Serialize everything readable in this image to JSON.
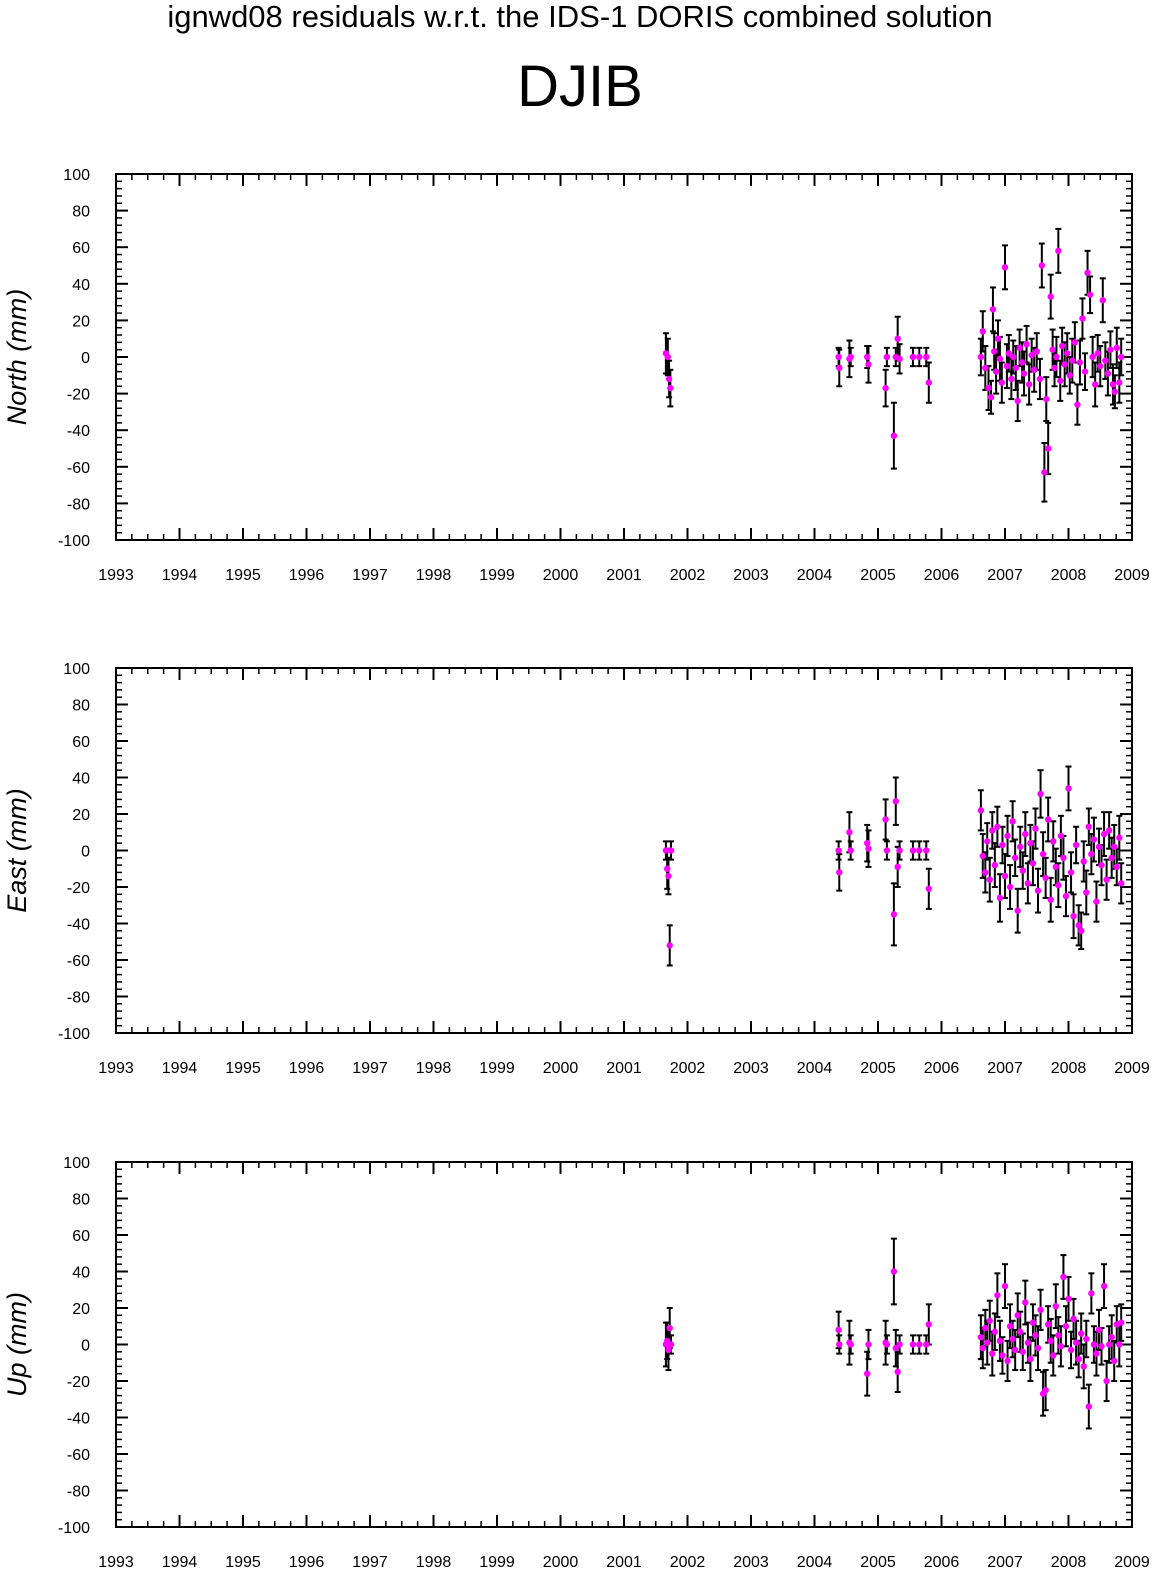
{
  "title": "ignwd08 residuals w.r.t. the IDS-1 DORIS combined solution",
  "subtitle": "DJIB",
  "colors": {
    "marker": "#ff00ff",
    "errorbar": "#000000",
    "axis": "#000000"
  },
  "chart_data": [
    {
      "type": "scatter",
      "ylabel": "North (mm)",
      "xlim": [
        1993,
        2009
      ],
      "ylim": [
        -100,
        100
      ],
      "xticks": [
        "1993",
        "1994",
        "1995",
        "1996",
        "1997",
        "1998",
        "1999",
        "2000",
        "2001",
        "2002",
        "2003",
        "2004",
        "2005",
        "2006",
        "2007",
        "2008",
        "2009"
      ],
      "yticks": [
        "-100",
        "-80",
        "-60",
        "-40",
        "-20",
        "0",
        "20",
        "40",
        "60",
        "80",
        "100"
      ],
      "points": [
        [
          2001.66,
          2,
          11
        ],
        [
          2001.69,
          0,
          10
        ],
        [
          2001.71,
          -12,
          10
        ],
        [
          2001.73,
          -17,
          10
        ],
        [
          2004.38,
          0,
          5
        ],
        [
          2004.39,
          -6,
          10
        ],
        [
          2004.55,
          -1,
          10
        ],
        [
          2004.57,
          0,
          5
        ],
        [
          2004.83,
          0,
          6
        ],
        [
          2004.85,
          -4,
          10
        ],
        [
          2005.12,
          -17,
          10
        ],
        [
          2005.14,
          0,
          5
        ],
        [
          2005.25,
          -43,
          18
        ],
        [
          2005.28,
          0,
          5
        ],
        [
          2005.31,
          10,
          12
        ],
        [
          2005.34,
          -1,
          8
        ],
        [
          2005.55,
          0,
          5
        ],
        [
          2005.65,
          0,
          5
        ],
        [
          2005.76,
          0,
          5
        ],
        [
          2005.8,
          -14,
          11
        ],
        [
          2006.62,
          0,
          10
        ],
        [
          2006.65,
          14,
          11
        ],
        [
          2006.69,
          -6,
          12
        ],
        [
          2006.74,
          -17,
          12
        ],
        [
          2006.78,
          -22,
          9
        ],
        [
          2006.81,
          26,
          12
        ],
        [
          2006.83,
          3,
          10
        ],
        [
          2006.86,
          -8,
          12
        ],
        [
          2006.89,
          10,
          10
        ],
        [
          2006.92,
          -1,
          12
        ],
        [
          2006.95,
          -14,
          11
        ],
        [
          2007.0,
          49,
          12
        ],
        [
          2007.03,
          -5,
          12
        ],
        [
          2007.06,
          2,
          10
        ],
        [
          2007.1,
          -12,
          11
        ],
        [
          2007.13,
          0,
          9
        ],
        [
          2007.17,
          -6,
          12
        ],
        [
          2007.2,
          -24,
          11
        ],
        [
          2007.23,
          5,
          10
        ],
        [
          2007.27,
          -3,
          11
        ],
        [
          2007.3,
          -9,
          12
        ],
        [
          2007.34,
          7,
          10
        ],
        [
          2007.38,
          -15,
          11
        ],
        [
          2007.42,
          1,
          9
        ],
        [
          2007.46,
          -7,
          12
        ],
        [
          2007.5,
          3,
          10
        ],
        [
          2007.55,
          -12,
          11
        ],
        [
          2007.58,
          50,
          12
        ],
        [
          2007.62,
          -63,
          16
        ],
        [
          2007.65,
          -23,
          12
        ],
        [
          2007.68,
          -50,
          14
        ],
        [
          2007.72,
          33,
          12
        ],
        [
          2007.75,
          4,
          11
        ],
        [
          2007.78,
          -6,
          10
        ],
        [
          2007.81,
          0,
          11
        ],
        [
          2007.84,
          58,
          12
        ],
        [
          2007.87,
          -13,
          11
        ],
        [
          2007.9,
          6,
          10
        ],
        [
          2007.94,
          -4,
          12
        ],
        [
          2007.98,
          2,
          11
        ],
        [
          2008.02,
          -10,
          10
        ],
        [
          2008.06,
          -2,
          12
        ],
        [
          2008.1,
          8,
          11
        ],
        [
          2008.14,
          -26,
          11
        ],
        [
          2008.18,
          -3,
          12
        ],
        [
          2008.22,
          21,
          11
        ],
        [
          2008.26,
          -8,
          10
        ],
        [
          2008.3,
          46,
          12
        ],
        [
          2008.34,
          34,
          10
        ],
        [
          2008.38,
          0,
          11
        ],
        [
          2008.42,
          -15,
          12
        ],
        [
          2008.46,
          2,
          10
        ],
        [
          2008.5,
          -5,
          11
        ],
        [
          2008.54,
          31,
          12
        ],
        [
          2008.58,
          -2,
          10
        ],
        [
          2008.62,
          -9,
          12
        ],
        [
          2008.66,
          4,
          10
        ],
        [
          2008.7,
          -15,
          11
        ],
        [
          2008.73,
          -19,
          9
        ],
        [
          2008.76,
          5,
          11
        ],
        [
          2008.8,
          -14,
          11
        ],
        [
          2008.83,
          0,
          10
        ]
      ]
    },
    {
      "type": "scatter",
      "ylabel": "East (mm)",
      "xlim": [
        1993,
        2009
      ],
      "ylim": [
        -100,
        100
      ],
      "xticks": [
        "1993",
        "1994",
        "1995",
        "1996",
        "1997",
        "1998",
        "1999",
        "2000",
        "2001",
        "2002",
        "2003",
        "2004",
        "2005",
        "2006",
        "2007",
        "2008",
        "2009"
      ],
      "yticks": [
        "-100",
        "-80",
        "-60",
        "-40",
        "-20",
        "0",
        "20",
        "40",
        "60",
        "80",
        "100"
      ],
      "points": [
        [
          2001.66,
          0,
          5
        ],
        [
          2001.68,
          -10,
          11
        ],
        [
          2001.7,
          -14,
          10
        ],
        [
          2001.72,
          -52,
          11
        ],
        [
          2001.74,
          0,
          5
        ],
        [
          2004.38,
          0,
          5
        ],
        [
          2004.39,
          -12,
          10
        ],
        [
          2004.55,
          10,
          11
        ],
        [
          2004.57,
          0,
          5
        ],
        [
          2004.83,
          4,
          10
        ],
        [
          2004.85,
          1,
          10
        ],
        [
          2005.12,
          17,
          11
        ],
        [
          2005.14,
          0,
          5
        ],
        [
          2005.25,
          -35,
          17
        ],
        [
          2005.28,
          27,
          13
        ],
        [
          2005.31,
          -9,
          11
        ],
        [
          2005.34,
          0,
          5
        ],
        [
          2005.55,
          0,
          5
        ],
        [
          2005.65,
          0,
          5
        ],
        [
          2005.76,
          0,
          5
        ],
        [
          2005.8,
          -21,
          11
        ],
        [
          2006.62,
          22,
          11
        ],
        [
          2006.65,
          -3,
          12
        ],
        [
          2006.69,
          -12,
          11
        ],
        [
          2006.72,
          5,
          10
        ],
        [
          2006.76,
          -16,
          12
        ],
        [
          2006.8,
          11,
          10
        ],
        [
          2006.84,
          -8,
          12
        ],
        [
          2006.88,
          13,
          11
        ],
        [
          2006.92,
          -26,
          13
        ],
        [
          2006.96,
          3,
          10
        ],
        [
          2007.0,
          -14,
          12
        ],
        [
          2007.04,
          8,
          11
        ],
        [
          2007.08,
          -20,
          12
        ],
        [
          2007.12,
          16,
          11
        ],
        [
          2007.16,
          -4,
          10
        ],
        [
          2007.2,
          -33,
          12
        ],
        [
          2007.24,
          2,
          11
        ],
        [
          2007.28,
          -11,
          10
        ],
        [
          2007.32,
          9,
          12
        ],
        [
          2007.36,
          -18,
          11
        ],
        [
          2007.4,
          4,
          10
        ],
        [
          2007.44,
          -7,
          12
        ],
        [
          2007.48,
          12,
          11
        ],
        [
          2007.52,
          -22,
          12
        ],
        [
          2007.56,
          31,
          13
        ],
        [
          2007.6,
          -2,
          12
        ],
        [
          2007.64,
          -15,
          11
        ],
        [
          2007.68,
          17,
          12
        ],
        [
          2007.72,
          -27,
          12
        ],
        [
          2007.76,
          5,
          11
        ],
        [
          2007.8,
          -9,
          10
        ],
        [
          2007.84,
          -19,
          12
        ],
        [
          2007.88,
          8,
          11
        ],
        [
          2007.92,
          -4,
          12
        ],
        [
          2007.96,
          -25,
          11
        ],
        [
          2008.0,
          34,
          12
        ],
        [
          2008.04,
          -12,
          11
        ],
        [
          2008.08,
          -36,
          12
        ],
        [
          2008.12,
          3,
          10
        ],
        [
          2008.16,
          -41,
          11
        ],
        [
          2008.2,
          -44,
          10
        ],
        [
          2008.24,
          -6,
          11
        ],
        [
          2008.28,
          -23,
          12
        ],
        [
          2008.32,
          13,
          10
        ],
        [
          2008.36,
          -2,
          11
        ],
        [
          2008.4,
          6,
          12
        ],
        [
          2008.44,
          -28,
          11
        ],
        [
          2008.48,
          2,
          10
        ],
        [
          2008.52,
          -8,
          11
        ],
        [
          2008.56,
          9,
          12
        ],
        [
          2008.6,
          -16,
          11
        ],
        [
          2008.64,
          11,
          10
        ],
        [
          2008.68,
          -4,
          11
        ],
        [
          2008.72,
          2,
          12
        ],
        [
          2008.76,
          -9,
          10
        ],
        [
          2008.8,
          7,
          12
        ],
        [
          2008.83,
          -18,
          11
        ]
      ]
    },
    {
      "type": "scatter",
      "ylabel": "Up (mm)",
      "xlim": [
        1993,
        2009
      ],
      "ylim": [
        -100,
        100
      ],
      "xticks": [
        "1993",
        "1994",
        "1995",
        "1996",
        "1997",
        "1998",
        "1999",
        "2000",
        "2001",
        "2002",
        "2003",
        "2004",
        "2005",
        "2006",
        "2007",
        "2008",
        "2009"
      ],
      "yticks": [
        "-100",
        "-80",
        "-60",
        "-40",
        "-20",
        "0",
        "20",
        "40",
        "60",
        "80",
        "100"
      ],
      "points": [
        [
          2001.66,
          0,
          12
        ],
        [
          2001.68,
          2,
          10
        ],
        [
          2001.7,
          -3,
          11
        ],
        [
          2001.72,
          9,
          11
        ],
        [
          2001.74,
          0,
          5
        ],
        [
          2004.38,
          8,
          10
        ],
        [
          2004.39,
          0,
          5
        ],
        [
          2004.55,
          1,
          12
        ],
        [
          2004.57,
          0,
          5
        ],
        [
          2004.83,
          -16,
          12
        ],
        [
          2004.85,
          0,
          8
        ],
        [
          2005.12,
          1,
          12
        ],
        [
          2005.14,
          0,
          5
        ],
        [
          2005.25,
          40,
          18
        ],
        [
          2005.28,
          -2,
          10
        ],
        [
          2005.31,
          -15,
          11
        ],
        [
          2005.34,
          0,
          5
        ],
        [
          2005.55,
          0,
          5
        ],
        [
          2005.65,
          0,
          5
        ],
        [
          2005.76,
          0,
          5
        ],
        [
          2005.8,
          11,
          11
        ],
        [
          2006.62,
          4,
          12
        ],
        [
          2006.65,
          -2,
          11
        ],
        [
          2006.69,
          9,
          10
        ],
        [
          2006.72,
          1,
          12
        ],
        [
          2006.76,
          13,
          11
        ],
        [
          2006.8,
          -5,
          12
        ],
        [
          2006.84,
          7,
          10
        ],
        [
          2006.88,
          27,
          12
        ],
        [
          2006.92,
          2,
          11
        ],
        [
          2006.96,
          -6,
          10
        ],
        [
          2007.0,
          32,
          12
        ],
        [
          2007.04,
          -9,
          11
        ],
        [
          2007.08,
          10,
          12
        ],
        [
          2007.12,
          3,
          10
        ],
        [
          2007.16,
          -3,
          11
        ],
        [
          2007.2,
          16,
          12
        ],
        [
          2007.24,
          7,
          11
        ],
        [
          2007.28,
          -4,
          10
        ],
        [
          2007.32,
          23,
          12
        ],
        [
          2007.36,
          1,
          11
        ],
        [
          2007.4,
          -8,
          12
        ],
        [
          2007.44,
          12,
          10
        ],
        [
          2007.48,
          5,
          11
        ],
        [
          2007.52,
          -2,
          12
        ],
        [
          2007.56,
          19,
          11
        ],
        [
          2007.6,
          -27,
          12
        ],
        [
          2007.64,
          -25,
          11
        ],
        [
          2007.68,
          11,
          10
        ],
        [
          2007.72,
          2,
          12
        ],
        [
          2007.76,
          -6,
          11
        ],
        [
          2007.8,
          21,
          12
        ],
        [
          2007.84,
          5,
          10
        ],
        [
          2007.88,
          -1,
          11
        ],
        [
          2007.92,
          37,
          12
        ],
        [
          2007.96,
          10,
          11
        ],
        [
          2008.0,
          25,
          12
        ],
        [
          2008.04,
          -3,
          10
        ],
        [
          2008.08,
          14,
          11
        ],
        [
          2008.12,
          1,
          12
        ],
        [
          2008.16,
          -8,
          10
        ],
        [
          2008.2,
          6,
          11
        ],
        [
          2008.24,
          -12,
          12
        ],
        [
          2008.28,
          3,
          10
        ],
        [
          2008.32,
          -34,
          12
        ],
        [
          2008.36,
          28,
          11
        ],
        [
          2008.4,
          0,
          10
        ],
        [
          2008.44,
          -5,
          12
        ],
        [
          2008.48,
          8,
          11
        ],
        [
          2008.52,
          -1,
          10
        ],
        [
          2008.56,
          32,
          12
        ],
        [
          2008.6,
          -20,
          11
        ],
        [
          2008.64,
          0,
          10
        ],
        [
          2008.68,
          4,
          12
        ],
        [
          2008.72,
          -9,
          11
        ],
        [
          2008.76,
          11,
          10
        ],
        [
          2008.8,
          0,
          12
        ],
        [
          2008.83,
          12,
          10
        ]
      ]
    }
  ]
}
